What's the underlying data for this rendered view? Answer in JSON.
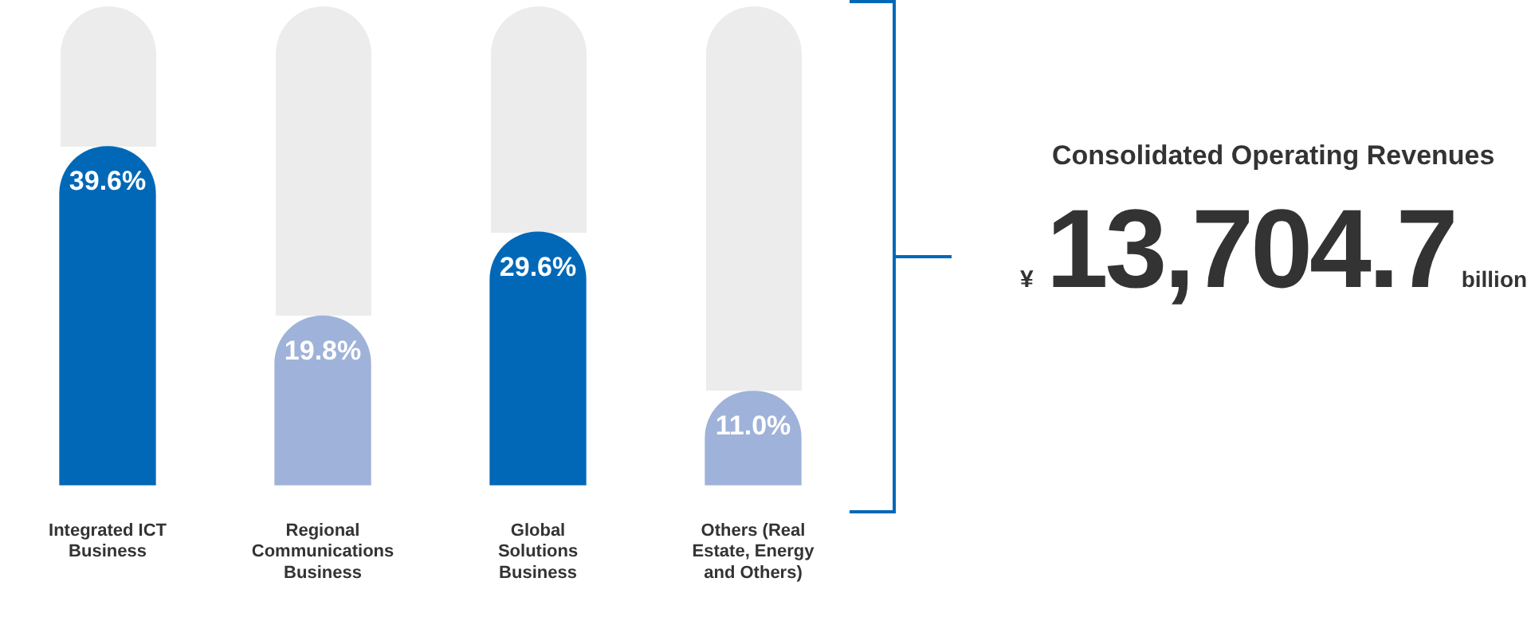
{
  "chart_data": {
    "type": "bar",
    "categories": [
      "Integrated ICT Business",
      "Regional Communications Business",
      "Global Solutions Business",
      "Others (Real Estate, Energy and Others)"
    ],
    "values": [
      39.6,
      19.8,
      29.6,
      11.0
    ],
    "colors": [
      "#0068b7",
      "#9fb2d9",
      "#0068b7",
      "#9fb2d9"
    ],
    "value_labels": [
      "39.6%",
      "19.8%",
      "29.6%",
      "11.0%"
    ],
    "ylim": [
      0,
      56
    ],
    "tick_labels": "x",
    "grid": false,
    "legend": false,
    "annotations": [
      "Consolidated Operating Revenues",
      "¥",
      "13,704.7",
      "billion"
    ]
  }
}
